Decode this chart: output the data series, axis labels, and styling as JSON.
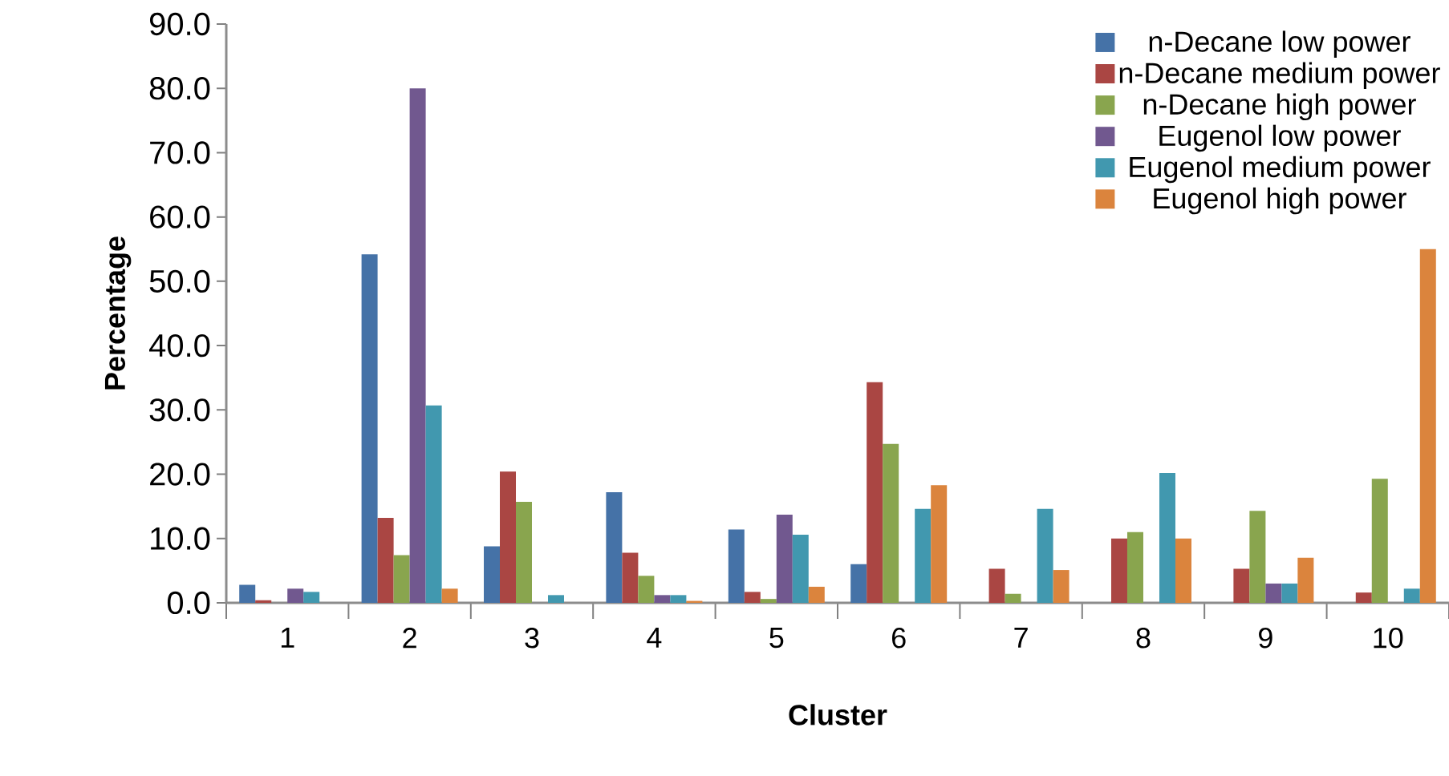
{
  "chart_data": {
    "type": "bar",
    "xlabel": "Cluster",
    "ylabel": "Percentage",
    "categories": [
      "1",
      "2",
      "3",
      "4",
      "5",
      "6",
      "7",
      "8",
      "9",
      "10"
    ],
    "series": [
      {
        "name": "n-Decane low power",
        "color": "#4572a7",
        "values": [
          2.8,
          54.2,
          8.8,
          17.2,
          11.4,
          6.0,
          0,
          0,
          0,
          0
        ]
      },
      {
        "name": "n-Decane medium power",
        "color": "#aa4643",
        "values": [
          0.4,
          13.2,
          20.4,
          7.8,
          1.7,
          34.3,
          5.3,
          10.0,
          5.3,
          1.6
        ]
      },
      {
        "name": "n-Decane high power",
        "color": "#89a54e",
        "values": [
          0,
          7.4,
          15.7,
          4.2,
          0.6,
          24.7,
          1.4,
          11.0,
          14.3,
          19.3
        ]
      },
      {
        "name": "Eugenol low power",
        "color": "#71588f",
        "values": [
          2.2,
          80.0,
          0,
          1.2,
          13.7,
          0,
          0,
          0,
          3.0,
          0
        ]
      },
      {
        "name": "Eugenol medium power",
        "color": "#4198af",
        "values": [
          1.7,
          30.7,
          1.2,
          1.2,
          10.6,
          14.6,
          14.6,
          20.2,
          3.0,
          2.2
        ]
      },
      {
        "name": "Eugenol high power",
        "color": "#db843d",
        "values": [
          0,
          2.2,
          0,
          0.3,
          2.5,
          18.3,
          5.1,
          10.0,
          7.0,
          55.0
        ]
      }
    ],
    "ylim": [
      0,
      90
    ],
    "yticks": [
      {
        "value": 0,
        "label": "0.0"
      },
      {
        "value": 10,
        "label": "10.0"
      },
      {
        "value": 20,
        "label": "20.0"
      },
      {
        "value": 30,
        "label": "30.0"
      },
      {
        "value": 40,
        "label": "40.0"
      },
      {
        "value": 50,
        "label": "50.0"
      },
      {
        "value": 60,
        "label": "60.0"
      },
      {
        "value": 70,
        "label": "70.0"
      },
      {
        "value": 80,
        "label": "80.0"
      },
      {
        "value": 90,
        "label": "90.0"
      }
    ],
    "grid": false,
    "legend": "top right"
  }
}
